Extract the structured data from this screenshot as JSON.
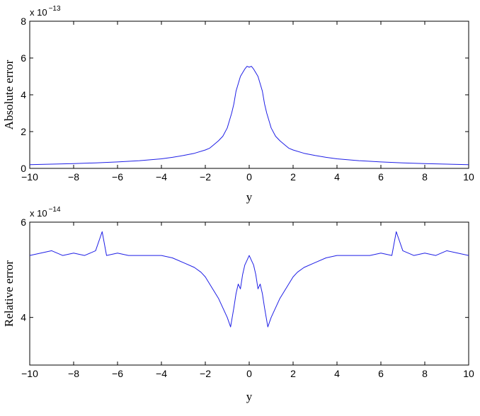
{
  "chart_data": [
    {
      "type": "line",
      "xlabel": "y",
      "ylabel": "Absolute error",
      "scale_label": "x 10",
      "scale_exponent": "−13",
      "xlim": [
        -10,
        10
      ],
      "ylim": [
        0,
        8
      ],
      "xticks": [
        "−10",
        "−8",
        "−6",
        "−4",
        "−2",
        "0",
        "2",
        "4",
        "6",
        "8",
        "10"
      ],
      "yticks": [
        "0",
        "2",
        "4",
        "6",
        "8"
      ],
      "series": [
        {
          "color": "#1f1fe6",
          "x": [
            -10,
            -9,
            -8,
            -7,
            -6,
            -5,
            -4,
            -3.5,
            -3,
            -2.5,
            -2,
            -1.8,
            -1.6,
            -1.4,
            -1.2,
            -1.0,
            -0.9,
            -0.8,
            -0.7,
            -0.6,
            -0.5,
            -0.4,
            -0.3,
            -0.2,
            -0.1,
            0,
            0.1,
            0.2,
            0.3,
            0.4,
            0.5,
            0.6,
            0.7,
            0.8,
            0.9,
            1.0,
            1.2,
            1.4,
            1.6,
            1.8,
            2,
            2.5,
            3,
            3.5,
            4,
            5,
            6,
            7,
            8,
            9,
            10
          ],
          "y": [
            0.2,
            0.23,
            0.26,
            0.3,
            0.35,
            0.42,
            0.52,
            0.6,
            0.7,
            0.82,
            1.0,
            1.1,
            1.3,
            1.5,
            1.75,
            2.2,
            2.6,
            3.0,
            3.5,
            4.2,
            4.6,
            5.0,
            5.2,
            5.4,
            5.55,
            5.5,
            5.55,
            5.4,
            5.2,
            5.0,
            4.6,
            4.2,
            3.5,
            3.0,
            2.6,
            2.2,
            1.75,
            1.5,
            1.3,
            1.1,
            1.0,
            0.82,
            0.7,
            0.6,
            0.52,
            0.42,
            0.35,
            0.3,
            0.26,
            0.23,
            0.2
          ]
        }
      ]
    },
    {
      "type": "line",
      "xlabel": "y",
      "ylabel": "Relative error",
      "scale_label": "x 10",
      "scale_exponent": "−14",
      "xlim": [
        -10,
        10
      ],
      "ylim": [
        3,
        6
      ],
      "xticks": [
        "−10",
        "−8",
        "−6",
        "−4",
        "−2",
        "0",
        "2",
        "4",
        "6",
        "8",
        "10"
      ],
      "yticks": [
        "4",
        "6"
      ],
      "series": [
        {
          "color": "#1f1fe6",
          "x": [
            -10,
            -9.5,
            -9,
            -8.5,
            -8,
            -7.5,
            -7,
            -6.7,
            -6.5,
            -6,
            -5.5,
            -5,
            -4.5,
            -4,
            -3.5,
            -3,
            -2.5,
            -2.2,
            -2,
            -1.8,
            -1.6,
            -1.4,
            -1.2,
            -1.0,
            -0.85,
            -0.7,
            -0.6,
            -0.5,
            -0.4,
            -0.3,
            -0.2,
            -0.1,
            0,
            0.1,
            0.2,
            0.3,
            0.4,
            0.5,
            0.6,
            0.7,
            0.85,
            1.0,
            1.2,
            1.4,
            1.6,
            1.8,
            2,
            2.2,
            2.5,
            3,
            3.5,
            4,
            4.5,
            5,
            5.5,
            6,
            6.5,
            6.7,
            7,
            7.5,
            8,
            8.5,
            9,
            9.5,
            10
          ],
          "y": [
            5.3,
            5.35,
            5.4,
            5.3,
            5.35,
            5.3,
            5.4,
            5.8,
            5.3,
            5.35,
            5.3,
            5.3,
            5.3,
            5.3,
            5.25,
            5.15,
            5.05,
            4.95,
            4.85,
            4.7,
            4.55,
            4.4,
            4.2,
            4.0,
            3.8,
            4.2,
            4.5,
            4.7,
            4.6,
            4.9,
            5.1,
            5.2,
            5.3,
            5.2,
            5.1,
            4.9,
            4.6,
            4.7,
            4.5,
            4.2,
            3.8,
            4.0,
            4.2,
            4.4,
            4.55,
            4.7,
            4.85,
            4.95,
            5.05,
            5.15,
            5.25,
            5.3,
            5.3,
            5.3,
            5.3,
            5.35,
            5.3,
            5.8,
            5.4,
            5.3,
            5.35,
            5.3,
            5.4,
            5.35,
            5.3
          ]
        }
      ]
    }
  ]
}
